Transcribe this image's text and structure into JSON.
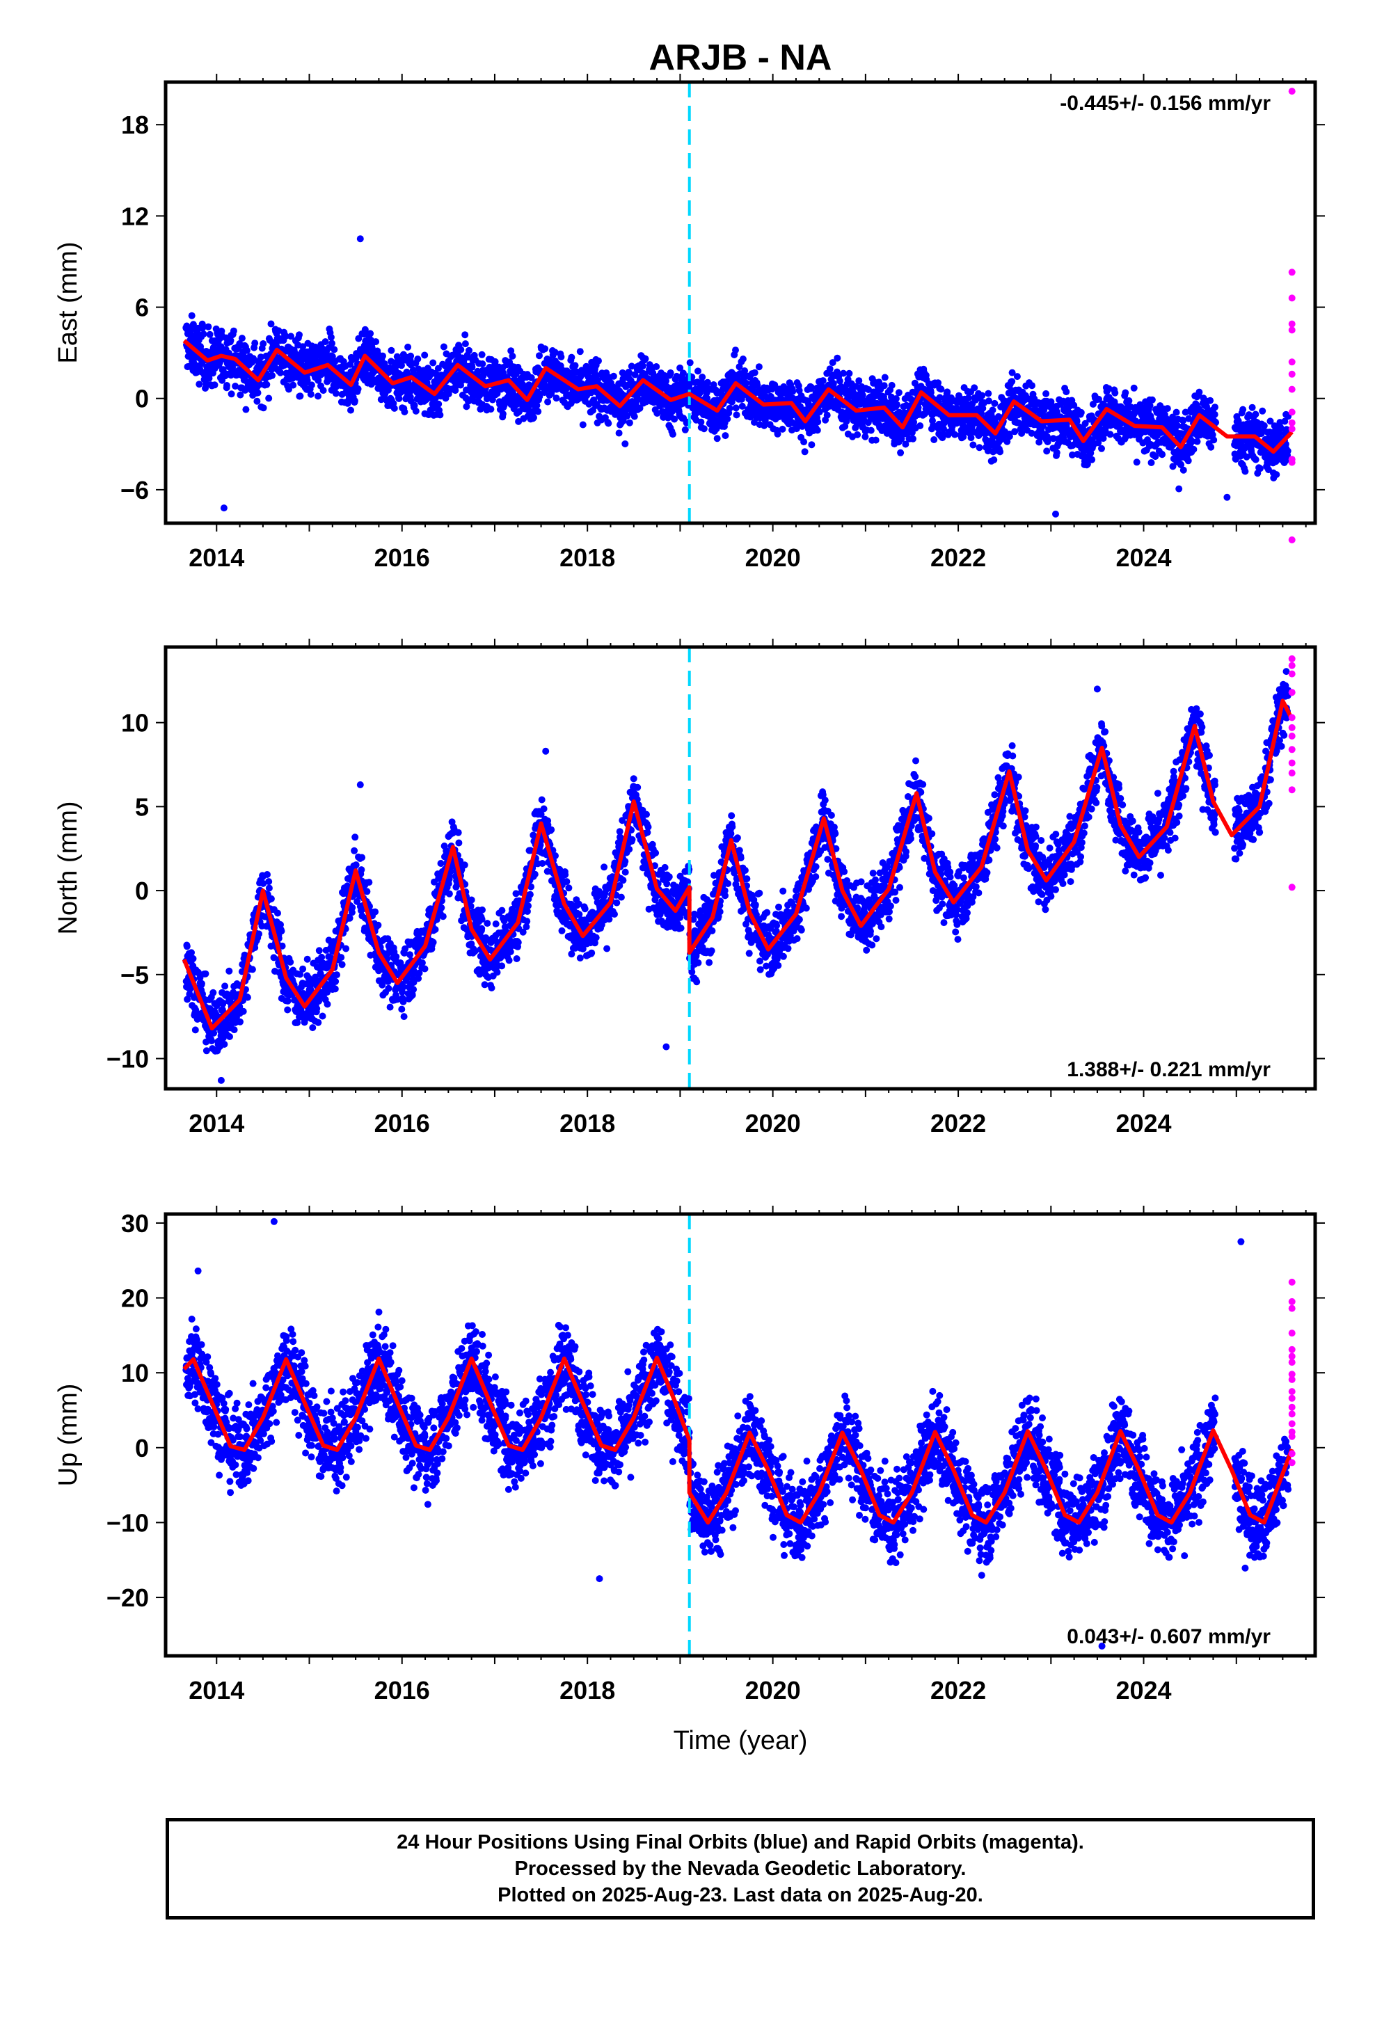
{
  "chart_data": [
    {
      "type": "scatter",
      "title": "ARJB - NA",
      "ylabel": "East (mm)",
      "xlabel": "",
      "xlim": [
        2013.45,
        2025.85
      ],
      "ylim": [
        -8.2,
        20.8
      ],
      "yticks": [
        -6,
        0,
        6,
        12,
        18
      ],
      "xticks": [
        2014,
        2016,
        2018,
        2020,
        2022,
        2024
      ],
      "annotation": "-0.445+/- 0.156 mm/yr",
      "annotation_position": "top-right",
      "reference_line_year": 2019.1,
      "colors": {
        "final": "#0000ff",
        "rapid": "#ff00ff",
        "model": "#ff0000",
        "reference": "#00d8ff"
      },
      "series": [
        {
          "type": "model",
          "x": [
            2013.65,
            2013.9,
            2014.05,
            2014.2,
            2014.45,
            2014.65,
            2014.95,
            2015.2,
            2015.45,
            2015.6,
            2015.9,
            2016.1,
            2016.35,
            2016.6,
            2016.9,
            2017.15,
            2017.35,
            2017.55,
            2017.9,
            2018.1,
            2018.35,
            2018.6,
            2018.9,
            2019.1,
            2019.4,
            2019.6,
            2019.9,
            2020.2,
            2020.35,
            2020.6,
            2020.9,
            2021.2,
            2021.4,
            2021.6,
            2021.9,
            2022.2,
            2022.4,
            2022.6,
            2022.9,
            2023.2,
            2023.35,
            2023.6,
            2023.9,
            2024.2,
            2024.4,
            2024.6,
            2024.9,
            2025.2,
            2025.4,
            2025.6
          ],
          "y": [
            3.8,
            2.5,
            2.8,
            2.6,
            1.2,
            3.2,
            1.7,
            2.2,
            0.9,
            2.8,
            1.0,
            1.4,
            0.3,
            2.2,
            0.8,
            1.2,
            -0.1,
            2.0,
            0.6,
            0.8,
            -0.5,
            1.2,
            -0.1,
            0.3,
            -0.8,
            1.0,
            -0.4,
            -0.3,
            -1.5,
            0.6,
            -0.8,
            -0.6,
            -1.9,
            0.4,
            -1.1,
            -1.1,
            -2.3,
            -0.2,
            -1.5,
            -1.4,
            -2.8,
            -0.7,
            -1.8,
            -1.9,
            -3.2,
            -1.1,
            -2.5,
            -2.5,
            -3.5,
            -2.2
          ]
        },
        {
          "type": "final",
          "trend": -0.445,
          "offset": 2.6,
          "amplitude": 1.0,
          "noise": 1.15,
          "spikes": [
            [
              2015.55,
              10.5
            ],
            [
              2014.08,
              -7.2
            ],
            [
              2023.05,
              -7.6
            ],
            [
              2024.9,
              -6.5
            ]
          ]
        },
        {
          "type": "rapid",
          "x": [
            2025.6,
            2025.6,
            2025.6,
            2025.6,
            2025.6,
            2025.6,
            2025.6,
            2025.6,
            2025.6,
            2025.6,
            2025.6,
            2025.6,
            2025.6,
            2025.6
          ],
          "y": [
            20.2,
            8.3,
            6.6,
            4.9,
            4.5,
            2.4,
            1.6,
            0.6,
            -0.9,
            -1.6,
            -2.0,
            -4.0,
            -4.2,
            -9.3
          ]
        }
      ]
    },
    {
      "type": "scatter",
      "ylabel": "North (mm)",
      "xlim": [
        2013.45,
        2025.85
      ],
      "ylim": [
        -11.8,
        14.5
      ],
      "yticks": [
        -10,
        -5,
        0,
        5,
        10
      ],
      "xticks": [
        2014,
        2016,
        2018,
        2020,
        2022,
        2024
      ],
      "annotation": "1.388+/- 0.221 mm/yr",
      "annotation_position": "bottom-right",
      "reference_line_year": 2019.1,
      "series": [
        {
          "type": "model",
          "x": [
            2013.65,
            2013.95,
            2014.25,
            2014.5,
            2014.75,
            2014.95,
            2015.25,
            2015.5,
            2015.75,
            2015.95,
            2016.25,
            2016.55,
            2016.75,
            2016.95,
            2017.25,
            2017.5,
            2017.75,
            2017.95,
            2018.25,
            2018.5,
            2018.75,
            2018.95,
            2019.1,
            2019.1,
            2019.35,
            2019.55,
            2019.75,
            2019.95,
            2020.25,
            2020.55,
            2020.75,
            2020.95,
            2021.25,
            2021.55,
            2021.75,
            2021.95,
            2022.25,
            2022.55,
            2022.75,
            2022.95,
            2023.25,
            2023.55,
            2023.75,
            2023.95,
            2024.25,
            2024.55,
            2024.75,
            2024.95,
            2025.25,
            2025.5,
            2025.6
          ],
          "y": [
            -4.1,
            -8.2,
            -6.5,
            0.0,
            -5.2,
            -6.9,
            -4.7,
            1.2,
            -3.7,
            -5.5,
            -3.3,
            2.6,
            -2.3,
            -4.1,
            -1.9,
            4.0,
            -0.8,
            -2.7,
            -0.7,
            5.3,
            0.1,
            -1.2,
            0.2,
            -3.7,
            -1.6,
            3.0,
            -1.3,
            -3.5,
            -1.4,
            4.3,
            0.0,
            -2.1,
            0.1,
            5.8,
            1.1,
            -0.7,
            1.4,
            7.1,
            2.4,
            0.6,
            2.9,
            8.5,
            3.9,
            2.0,
            3.8,
            9.8,
            5.3,
            3.3,
            5.0,
            11.3,
            10.2
          ]
        },
        {
          "type": "final",
          "trend": 1.388,
          "offset": -4.2,
          "amplitude": 3.4,
          "noise": 1.2,
          "spikes": [
            [
              2015.55,
              6.3
            ],
            [
              2017.55,
              8.3
            ],
            [
              2018.85,
              -9.3
            ],
            [
              2014.05,
              -11.3
            ],
            [
              2023.5,
              12.0
            ]
          ]
        },
        {
          "type": "rapid",
          "x": [
            2025.6,
            2025.6,
            2025.6,
            2025.6,
            2025.6,
            2025.6,
            2025.6,
            2025.6,
            2025.6,
            2025.6,
            2025.6,
            2025.6
          ],
          "y": [
            13.8,
            13.4,
            12.9,
            11.8,
            10.3,
            9.7,
            9.2,
            8.4,
            7.6,
            7.0,
            6.0,
            0.2
          ]
        }
      ]
    },
    {
      "type": "scatter",
      "ylabel": "Up (mm)",
      "xlabel": "Time (year)",
      "xlim": [
        2013.45,
        2025.85
      ],
      "ylim": [
        -27.8,
        31.2
      ],
      "yticks": [
        -20,
        -10,
        0,
        10,
        20,
        30
      ],
      "xticks": [
        2014,
        2016,
        2018,
        2020,
        2022,
        2024
      ],
      "annotation": "0.043+/- 0.607 mm/yr",
      "annotation_position": "bottom-right",
      "reference_line_year": 2019.1,
      "series": [
        {
          "type": "model",
          "x": [
            2013.65,
            2013.75,
            2013.95,
            2014.15,
            2014.3,
            2014.5,
            2014.75,
            2014.95,
            2015.15,
            2015.3,
            2015.5,
            2015.75,
            2015.95,
            2016.15,
            2016.3,
            2016.5,
            2016.75,
            2016.95,
            2017.15,
            2017.3,
            2017.5,
            2017.75,
            2017.95,
            2018.15,
            2018.3,
            2018.5,
            2018.75,
            2018.95,
            2019.1,
            2019.1,
            2019.3,
            2019.5,
            2019.75,
            2019.95,
            2020.15,
            2020.3,
            2020.5,
            2020.75,
            2020.95,
            2021.15,
            2021.3,
            2021.5,
            2021.75,
            2021.95,
            2022.15,
            2022.3,
            2022.5,
            2022.75,
            2022.95,
            2023.15,
            2023.3,
            2023.5,
            2023.75,
            2023.95,
            2024.15,
            2024.3,
            2024.5,
            2024.75,
            2024.95,
            2025.15,
            2025.3,
            2025.6
          ],
          "y": [
            10.5,
            11.8,
            6.0,
            0.2,
            -0.3,
            4.0,
            11.8,
            6.0,
            0.3,
            -0.3,
            4.0,
            11.9,
            6.0,
            0.3,
            -0.3,
            4.0,
            11.9,
            6.0,
            0.3,
            -0.3,
            4.0,
            11.9,
            6.0,
            0.3,
            -0.3,
            4.0,
            12.0,
            6.0,
            1.0,
            -6.0,
            -10.0,
            -6.0,
            2.0,
            -3.0,
            -9.0,
            -10.0,
            -6.0,
            2.0,
            -3.0,
            -9.0,
            -10.0,
            -6.0,
            2.1,
            -3.0,
            -9.0,
            -10.0,
            -6.0,
            2.2,
            -3.0,
            -9.0,
            -10.0,
            -6.0,
            2.2,
            -3.0,
            -9.0,
            -10.0,
            -6.0,
            2.3,
            -3.0,
            -9.0,
            -10.0,
            -0.2
          ]
        },
        {
          "type": "final",
          "trend": 0.043,
          "offset": 5.0,
          "amplitude": 6.0,
          "noise": 3.5,
          "step": [
            2019.1,
            -8.0
          ],
          "spikes": [
            [
              2014.62,
              30.2
            ],
            [
              2013.8,
              23.6
            ],
            [
              2025.05,
              27.5
            ],
            [
              2018.13,
              -17.5
            ],
            [
              2023.55,
              -26.5
            ]
          ]
        },
        {
          "type": "rapid",
          "x": [
            2025.6,
            2025.6,
            2025.6,
            2025.6,
            2025.6,
            2025.6,
            2025.6,
            2025.6,
            2025.6,
            2025.6,
            2025.6,
            2025.6,
            2025.6,
            2025.6,
            2025.6,
            2025.6,
            2025.6,
            2025.6
          ],
          "y": [
            22.1,
            19.5,
            18.6,
            15.3,
            13.1,
            12.2,
            11.4,
            9.8,
            9.1,
            7.5,
            6.6,
            5.4,
            4.5,
            3.2,
            2.1,
            1.5,
            -0.8,
            -2.0
          ]
        }
      ]
    }
  ],
  "footer": {
    "line1": "24 Hour Positions Using Final Orbits (blue) and Rapid Orbits (magenta).",
    "line2": "Processed by the Nevada Geodetic Laboratory.",
    "line3": "Plotted on 2025-Aug-23. Last data on 2025-Aug-20."
  }
}
